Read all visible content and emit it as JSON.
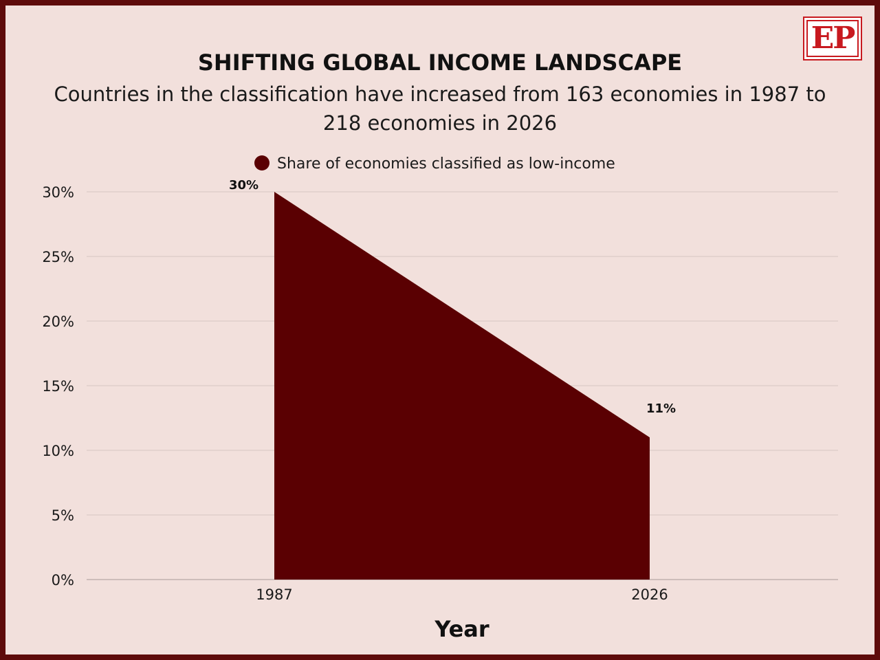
{
  "header": {
    "title": "SHIFTING GLOBAL INCOME LANDSCAPE",
    "subtitle": "Countries in the classification have increased from 163 economies in 1987 to 218 economies in 2026",
    "logo_text": "EP"
  },
  "colors": {
    "frame": "#5e0b0b",
    "background": "#f2e0dc",
    "series": "#5a0002",
    "logo_red": "#c8191f"
  },
  "chart_data": {
    "type": "area",
    "title": "SHIFTING GLOBAL INCOME LANDSCAPE",
    "subtitle": "Countries in the classification have increased from 163 economies in 1987 to 218 economies in 2026",
    "xlabel": "Year",
    "ylabel": "",
    "x": [
      "1987",
      "2026"
    ],
    "series": [
      {
        "name": "Share of economies classified as low-income",
        "values": [
          30,
          11
        ]
      }
    ],
    "data_labels": [
      "30%",
      "11%"
    ],
    "ylim": [
      0,
      30
    ],
    "yticks": [
      0,
      5,
      10,
      15,
      20,
      25,
      30
    ],
    "ytick_labels": [
      "0%",
      "5%",
      "10%",
      "15%",
      "20%",
      "25%",
      "30%"
    ],
    "grid": true,
    "legend_position": "top-center"
  }
}
